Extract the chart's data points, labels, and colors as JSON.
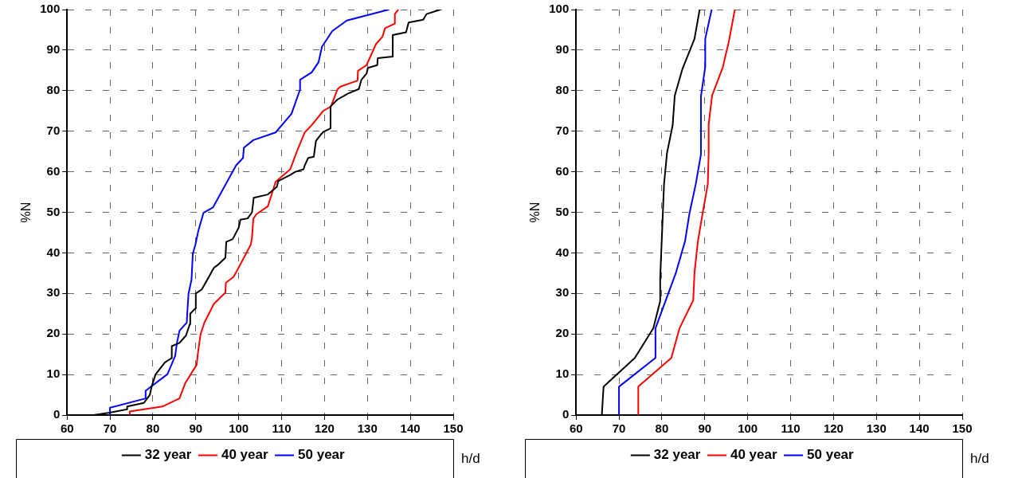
{
  "chart_data": [
    {
      "type": "line",
      "xlabel": "h/d",
      "ylabel": "%N",
      "xlim": [
        60,
        150
      ],
      "xticks": [
        60,
        70,
        80,
        90,
        100,
        110,
        120,
        130,
        140,
        150
      ],
      "ylim": [
        0,
        100
      ],
      "yticks": [
        0,
        10,
        20,
        30,
        40,
        50,
        60,
        70,
        80,
        90,
        100
      ],
      "grid": true,
      "legend": "bottom",
      "marker": "none",
      "series": [
        {
          "name": "32 year",
          "color": "#000000",
          "x": [
            66.2,
            69.9,
            73.9,
            74,
            77.9,
            79.3,
            79.7,
            80.6,
            82.8,
            84.3,
            84.4,
            86.2,
            87.7,
            88.6,
            88.7,
            89.9,
            90,
            91.4,
            92.9,
            94.2,
            95.1,
            96.9,
            97.1,
            98.6,
            100,
            100.4,
            102.1,
            103.1,
            103.5,
            106.8,
            108.9,
            109.2,
            112,
            113.2,
            115.1,
            115.4,
            116.2,
            117.5,
            118,
            119,
            119.7,
            121.4,
            121.4,
            123,
            125.5,
            128,
            128.6,
            129.8,
            130.1,
            132.3,
            132.4,
            135.9,
            135.9,
            139,
            139.6,
            143,
            143.8,
            147
          ],
          "values": [
            0,
            0.6,
            1.4,
            2.1,
            3,
            5,
            7,
            10,
            13,
            14,
            17,
            17.8,
            19.6,
            22.4,
            25,
            26.3,
            30,
            31,
            33.8,
            36.3,
            37,
            38.8,
            42.7,
            43.4,
            46.2,
            48.2,
            48.5,
            50,
            53.6,
            54.4,
            56.3,
            57.7,
            59.2,
            60,
            60.6,
            61.6,
            63.4,
            63.7,
            67.6,
            69,
            69.8,
            70.7,
            76.1,
            77.8,
            79.3,
            80.4,
            82.7,
            84.2,
            85.6,
            86.3,
            88,
            88.4,
            93.7,
            94.4,
            96.8,
            97.5,
            98.9,
            100
          ]
        },
        {
          "name": "40 year",
          "color": "#ff0000",
          "x": [
            74.5,
            74.6,
            82.2,
            86.2,
            87.5,
            90.2,
            90.5,
            91.1,
            92,
            94.2,
            96.9,
            97,
            98.8,
            100.3,
            102.8,
            103.1,
            103.4,
            104.1,
            106.8,
            108.6,
            112,
            113.7,
            115.4,
            117,
            119.7,
            121.5,
            123,
            123.7,
            127.7,
            127.8,
            129.8,
            132,
            133.5,
            134.1,
            136.3,
            136.4,
            137.2
          ],
          "values": [
            0,
            0.9,
            2.1,
            4.1,
            7.8,
            12.4,
            15.3,
            19.9,
            22.8,
            27.4,
            30.2,
            32.6,
            34.1,
            37,
            42,
            43.7,
            48.4,
            49.5,
            51.5,
            57.5,
            60.6,
            65.4,
            69.7,
            71.5,
            75,
            76.1,
            80.3,
            81,
            82.5,
            84.9,
            86.3,
            91.5,
            93.3,
            95.4,
            96.5,
            98.9,
            100
          ]
        },
        {
          "name": "50 year",
          "color": "#0000ff",
          "x": [
            70,
            70,
            78.3,
            78.3,
            83.4,
            85.2,
            85.6,
            86.2,
            87.9,
            88,
            88.3,
            89,
            89.3,
            89.9,
            90.6,
            91.8,
            94,
            99.4,
            101,
            101.2,
            103.4,
            108.6,
            112.3,
            114.3,
            114.3,
            117,
            118.6,
            119.4,
            121.8,
            125.2,
            135
          ],
          "values": [
            0,
            1.8,
            4.1,
            6,
            10.1,
            14.6,
            17.8,
            20.8,
            22.8,
            25,
            29.9,
            33.4,
            39.8,
            42,
            45.5,
            49.9,
            51.2,
            61.6,
            63.4,
            65.9,
            67.8,
            69.7,
            74.3,
            80.3,
            82.7,
            84.5,
            87,
            90.8,
            94.7,
            97.3,
            100
          ]
        }
      ]
    },
    {
      "type": "line",
      "xlabel": "h/d",
      "ylabel": "%N",
      "xlim": [
        60,
        150
      ],
      "xticks": [
        60,
        70,
        80,
        90,
        100,
        110,
        120,
        130,
        140,
        150
      ],
      "ylim": [
        0,
        100
      ],
      "yticks": [
        0,
        10,
        20,
        30,
        40,
        50,
        60,
        70,
        80,
        90,
        100
      ],
      "grid": true,
      "legend": "bottom",
      "marker": "none",
      "series": [
        {
          "name": "32 year",
          "color": "#000000",
          "x": [
            66,
            66.4,
            73.7,
            78,
            79.6,
            79.6,
            80.2,
            80.5,
            81.2,
            82.5,
            83,
            84.8,
            87.6,
            88.8
          ],
          "values": [
            0,
            7,
            14.1,
            21.4,
            28.1,
            33.8,
            49.2,
            57,
            64.7,
            71.4,
            78.8,
            85.4,
            92.8,
            100
          ]
        },
        {
          "name": "40 year",
          "color": "#ff0000",
          "x": [
            74.5,
            74.5,
            82.2,
            84.1,
            87.3,
            87.6,
            88.4,
            89.4,
            90.7,
            90.9,
            90.9,
            91.7,
            94.2,
            95.6,
            97
          ],
          "values": [
            0,
            7,
            14.1,
            21.4,
            28.3,
            35.2,
            42.9,
            49.2,
            57,
            64.7,
            71.7,
            78.8,
            85.8,
            92.1,
            100
          ]
        },
        {
          "name": "50 year",
          "color": "#0000ff",
          "x": [
            70,
            70,
            78.5,
            78.5,
            83.3,
            85.4,
            86.4,
            87.9,
            89.1,
            89.1,
            90.1,
            90.1,
            91.6
          ],
          "values": [
            0,
            7,
            14.1,
            21.4,
            35.2,
            42.9,
            49.6,
            57,
            64.3,
            78.6,
            85.8,
            92.8,
            100
          ]
        }
      ]
    }
  ]
}
